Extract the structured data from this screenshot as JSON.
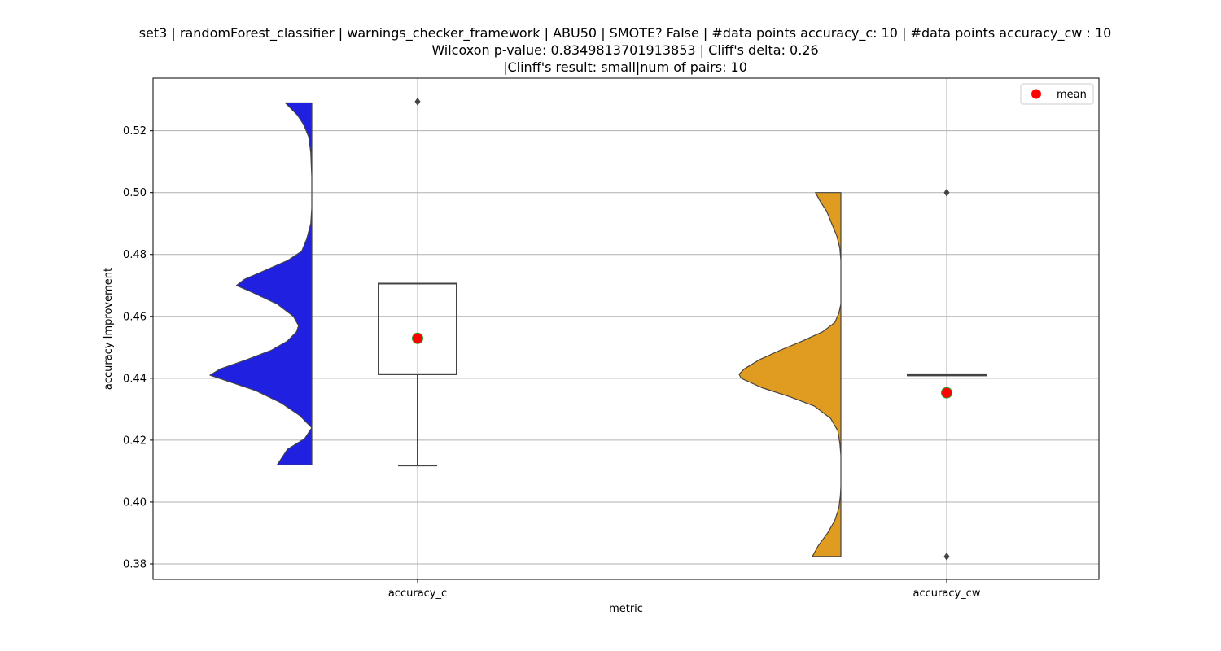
{
  "chart_data": {
    "type": "violin",
    "title_lines": [
      "set3 | randomForest_classifier | warnings_checker_framework | ABU50 | SMOTE? False | #data points accuracy_c: 10 | #data points accuracy_cw : 10",
      "Wilcoxon p-value: 0.8349813701913853 | Cliff's delta: 0.26",
      "|Clinff's result: small|num of pairs: 10"
    ],
    "xlabel": "metric",
    "ylabel": "accuracy Improvement",
    "ylim": [
      0.375,
      0.537
    ],
    "yticks": [
      0.38,
      0.4,
      0.42,
      0.44,
      0.46,
      0.48,
      0.5,
      0.52
    ],
    "ytick_labels": [
      "0.38",
      "0.40",
      "0.42",
      "0.44",
      "0.46",
      "0.48",
      "0.50",
      "0.52"
    ],
    "grid": true,
    "legend": {
      "position": "top-right",
      "entries": [
        {
          "label": "mean",
          "color": "#ff0000"
        }
      ]
    },
    "categories": [
      "accuracy_c",
      "accuracy_cw"
    ],
    "groups": [
      {
        "category": "accuracy_c",
        "violin_color": "#2020e0",
        "violin_min": 0.412,
        "violin_max": 0.529,
        "density": [
          [
            0.412,
            0.34
          ],
          [
            0.417,
            0.24
          ],
          [
            0.4205,
            0.07
          ],
          [
            0.424,
            0.0
          ],
          [
            0.428,
            0.12
          ],
          [
            0.432,
            0.3
          ],
          [
            0.436,
            0.55
          ],
          [
            0.439,
            0.82
          ],
          [
            0.441,
            1.0
          ],
          [
            0.443,
            0.9
          ],
          [
            0.446,
            0.64
          ],
          [
            0.449,
            0.4
          ],
          [
            0.452,
            0.24
          ],
          [
            0.455,
            0.15
          ],
          [
            0.457,
            0.13
          ],
          [
            0.46,
            0.18
          ],
          [
            0.464,
            0.34
          ],
          [
            0.468,
            0.6
          ],
          [
            0.47,
            0.74
          ],
          [
            0.472,
            0.66
          ],
          [
            0.475,
            0.45
          ],
          [
            0.478,
            0.24
          ],
          [
            0.481,
            0.1
          ],
          [
            0.485,
            0.05
          ],
          [
            0.49,
            0.01
          ],
          [
            0.495,
            0.0
          ],
          [
            0.505,
            0.0
          ],
          [
            0.513,
            0.01
          ],
          [
            0.518,
            0.03
          ],
          [
            0.522,
            0.08
          ],
          [
            0.525,
            0.14
          ],
          [
            0.529,
            0.26
          ]
        ],
        "box": {
          "q1": 0.4413,
          "median": 0.4413,
          "q3": 0.4706,
          "whisker_low": 0.4118,
          "whisker_high": 0.4706
        },
        "outliers": [
          0.5294
        ],
        "mean": 0.4529
      },
      {
        "category": "accuracy_cw",
        "violin_color": "#e09c20",
        "violin_min": 0.3824,
        "violin_max": 0.5,
        "density": [
          [
            0.3824,
            0.28
          ],
          [
            0.386,
            0.22
          ],
          [
            0.39,
            0.13
          ],
          [
            0.394,
            0.06
          ],
          [
            0.398,
            0.02
          ],
          [
            0.402,
            0.005
          ],
          [
            0.405,
            0.0
          ],
          [
            0.415,
            0.0
          ],
          [
            0.419,
            0.01
          ],
          [
            0.423,
            0.03
          ],
          [
            0.427,
            0.1
          ],
          [
            0.431,
            0.26
          ],
          [
            0.434,
            0.5
          ],
          [
            0.437,
            0.78
          ],
          [
            0.44,
            0.98
          ],
          [
            0.4413,
            1.0
          ],
          [
            0.443,
            0.95
          ],
          [
            0.446,
            0.8
          ],
          [
            0.449,
            0.6
          ],
          [
            0.452,
            0.38
          ],
          [
            0.455,
            0.18
          ],
          [
            0.458,
            0.06
          ],
          [
            0.461,
            0.02
          ],
          [
            0.464,
            0.0
          ],
          [
            0.478,
            0.0
          ],
          [
            0.482,
            0.01
          ],
          [
            0.486,
            0.04
          ],
          [
            0.49,
            0.09
          ],
          [
            0.494,
            0.14
          ],
          [
            0.497,
            0.2
          ],
          [
            0.5,
            0.25
          ]
        ],
        "box": {
          "q1": 0.4412,
          "median": 0.4412,
          "q3": 0.4413,
          "whisker_low": 0.4412,
          "whisker_high": 0.4413
        },
        "outliers": [
          0.5,
          0.3824
        ],
        "mean": 0.4353
      }
    ],
    "colors": {
      "mean_fill": "#ff0000",
      "mean_edge": "#2ca02c",
      "box_edge": "#444444",
      "outlier": "#444444",
      "grid": "#b0b0b0"
    }
  }
}
